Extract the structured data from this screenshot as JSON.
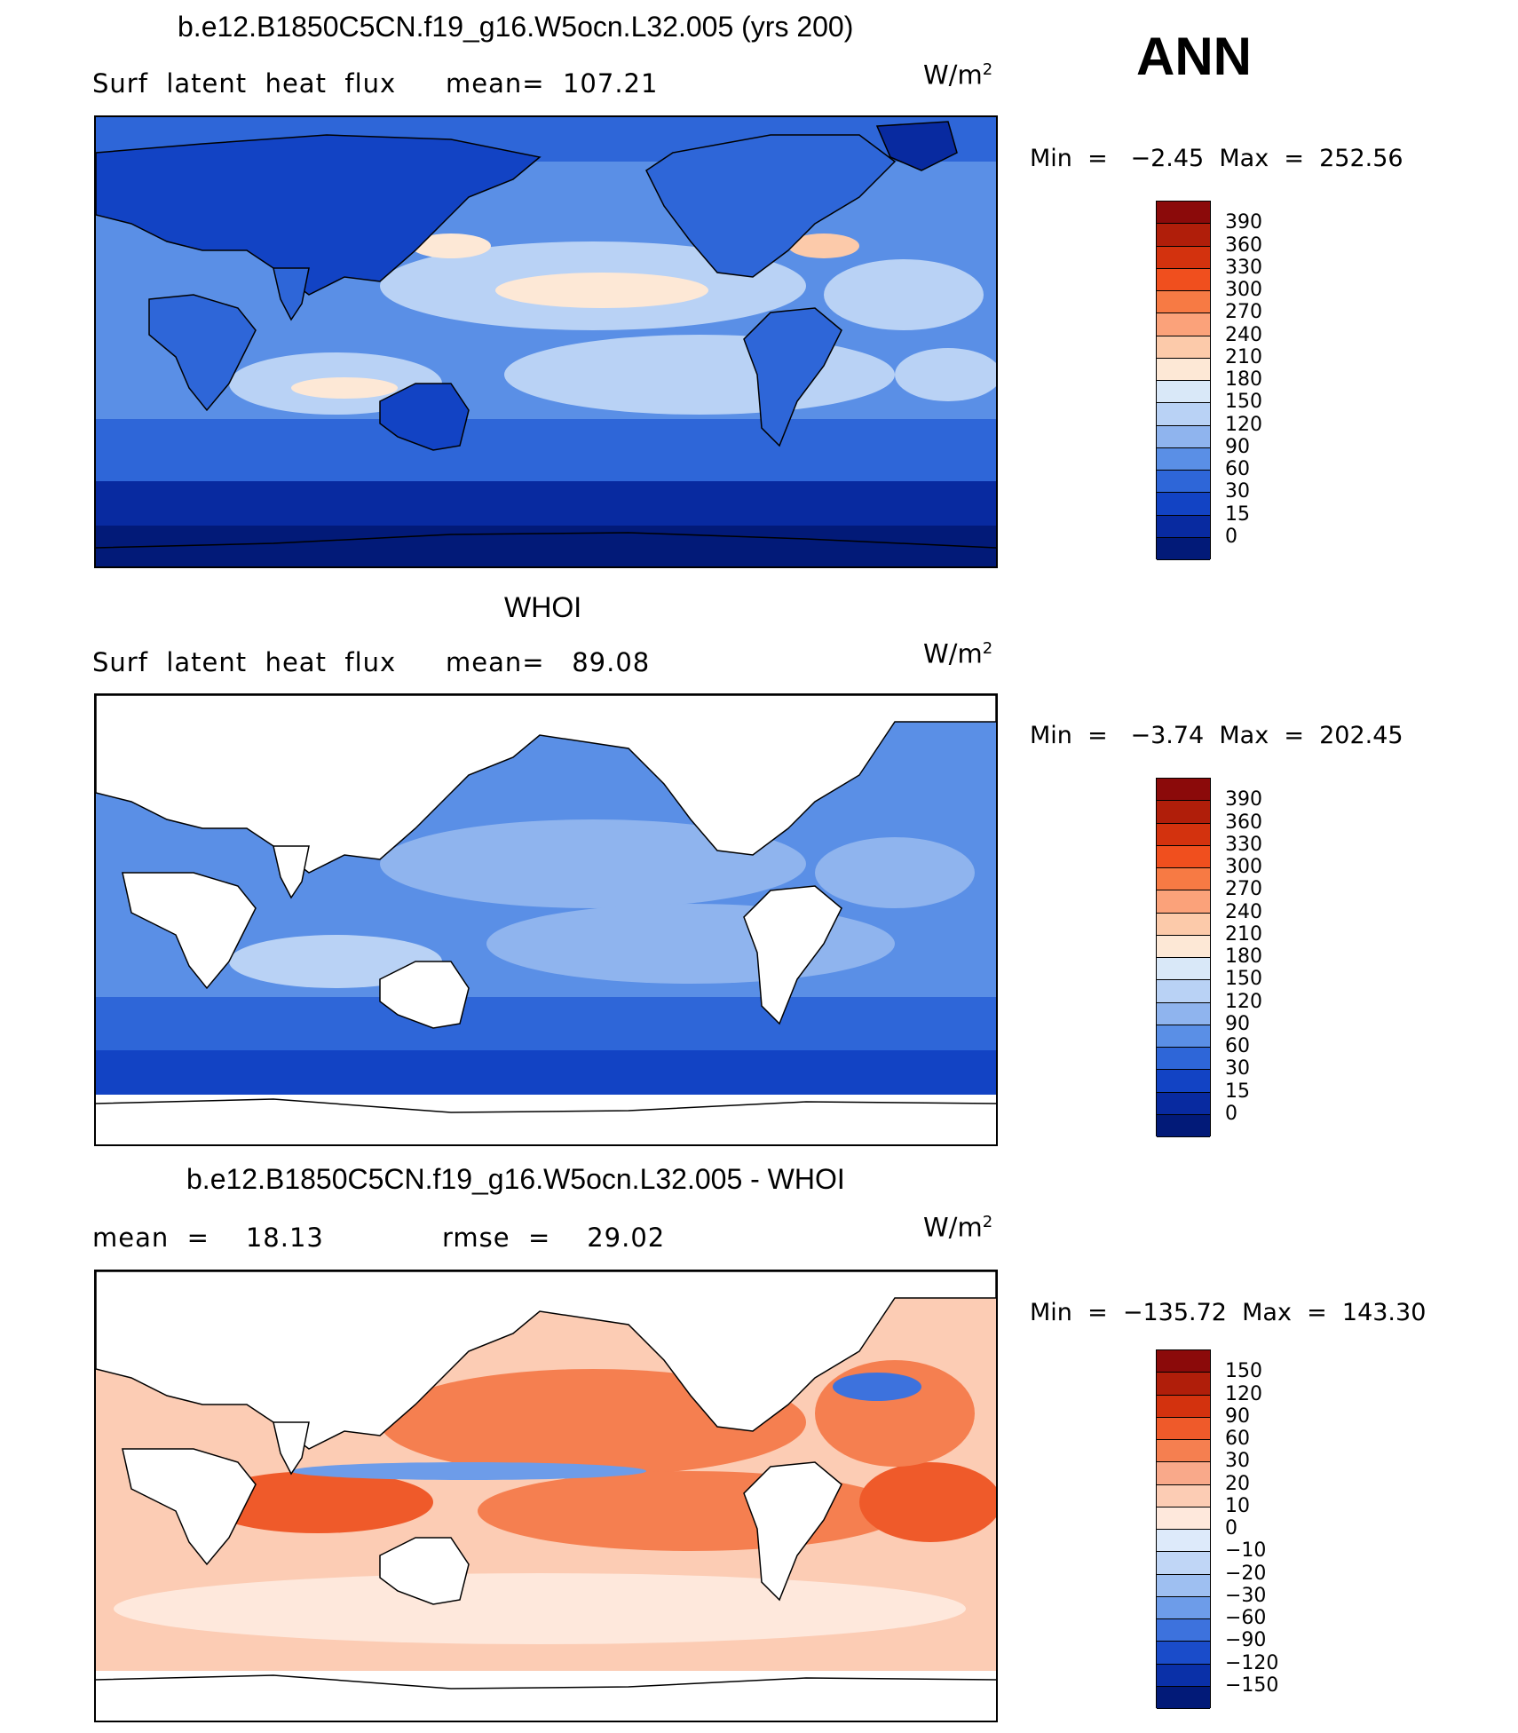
{
  "season": "ANN",
  "units_base": "W/m",
  "units_exp": "2",
  "panels": [
    {
      "title": "b.e12.B1850C5CN.f19_g16.W5ocn.L32.005 (yrs 200)",
      "left_label": "Surf  latent  heat  flux",
      "center_label": "mean=  107.21",
      "minmax": "Min  =   −2.45  Max  =  252.56",
      "colorbar": {
        "levels": [
          "390",
          "360",
          "330",
          "300",
          "270",
          "240",
          "210",
          "180",
          "150",
          "120",
          "90",
          "60",
          "30",
          "15",
          "0"
        ],
        "colors": [
          "#8b0a0a",
          "#b01e0a",
          "#d3320e",
          "#f04f1e",
          "#f77a44",
          "#fba27a",
          "#fccaaa",
          "#fde8d6",
          "#d9e8f8",
          "#b9d2f5",
          "#8fb4ee",
          "#5a8fe6",
          "#2e66d8",
          "#1243c4",
          "#082aa0",
          "#021a78"
        ]
      },
      "map_style": "model"
    },
    {
      "title": "WHOI",
      "left_label": "Surf  latent  heat  flux",
      "center_label": "mean=   89.08",
      "minmax": "Min  =   −3.74  Max  =  202.45",
      "colorbar": {
        "levels": [
          "390",
          "360",
          "330",
          "300",
          "270",
          "240",
          "210",
          "180",
          "150",
          "120",
          "90",
          "60",
          "30",
          "15",
          "0"
        ],
        "colors": [
          "#8b0a0a",
          "#b01e0a",
          "#d3320e",
          "#f04f1e",
          "#f77a44",
          "#fba27a",
          "#fccaaa",
          "#fde8d6",
          "#d9e8f8",
          "#b9d2f5",
          "#8fb4ee",
          "#5a8fe6",
          "#2e66d8",
          "#1243c4",
          "#082aa0",
          "#021a78"
        ]
      },
      "map_style": "obs"
    },
    {
      "title": "b.e12.B1850C5CN.f19_g16.W5ocn.L32.005 - WHOI",
      "left_label": "mean  =    18.13",
      "center_label": "rmse  =    29.02",
      "minmax": "Min  =  −135.72  Max  =  143.30",
      "colorbar": {
        "levels": [
          "150",
          "120",
          "90",
          "60",
          "30",
          "20",
          "10",
          "0",
          "−10",
          "−20",
          "−30",
          "−60",
          "−90",
          "−120",
          "−150"
        ],
        "colors": [
          "#8b0a0a",
          "#b01e0a",
          "#d3320e",
          "#ef5a2a",
          "#f57f50",
          "#f9a98a",
          "#fcccb4",
          "#fee8dc",
          "#ddeafa",
          "#c0d6f6",
          "#9ebff1",
          "#6d9ce9",
          "#3d72dd",
          "#1a4cca",
          "#0a30a8",
          "#021a78"
        ]
      },
      "map_style": "diff"
    }
  ]
}
